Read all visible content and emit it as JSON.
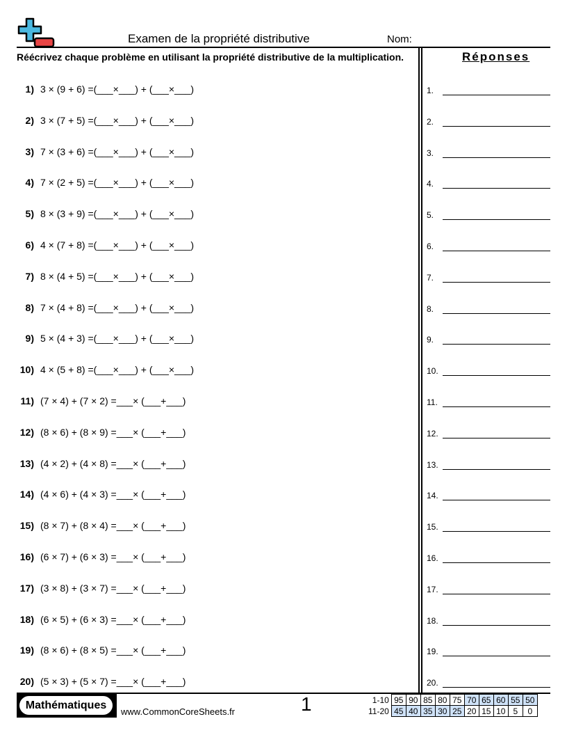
{
  "header": {
    "title": "Examen de la propriété distributive",
    "name_label": "Nom:"
  },
  "instructions": "Réécrivez chaque problème en utilisant la propriété distributive de la multiplication.",
  "answers_heading": "Réponses",
  "problems": [
    {
      "n": "1)",
      "text": "3 × (9 + 6) =(___×___) + (___×___)"
    },
    {
      "n": "2)",
      "text": "3 × (7 + 5) =(___×___) + (___×___)"
    },
    {
      "n": "3)",
      "text": "7 × (3 + 6) =(___×___) + (___×___)"
    },
    {
      "n": "4)",
      "text": "7 × (2 + 5) =(___×___) + (___×___)"
    },
    {
      "n": "5)",
      "text": "8 × (3 + 9) =(___×___) + (___×___)"
    },
    {
      "n": "6)",
      "text": "4 × (7 + 8) =(___×___) + (___×___)"
    },
    {
      "n": "7)",
      "text": "8 × (4 + 5) =(___×___) + (___×___)"
    },
    {
      "n": "8)",
      "text": "7 × (4 + 8) =(___×___) + (___×___)"
    },
    {
      "n": "9)",
      "text": "5 × (4 + 3) =(___×___) + (___×___)"
    },
    {
      "n": "10)",
      "text": "4 × (5 + 8) =(___×___) + (___×___)"
    },
    {
      "n": "11)",
      "text": "(7 × 4) + (7 × 2) =___× (___+___)"
    },
    {
      "n": "12)",
      "text": "(8 × 6) + (8 × 9) =___× (___+___)"
    },
    {
      "n": "13)",
      "text": "(4 × 2) + (4 × 8) =___× (___+___)"
    },
    {
      "n": "14)",
      "text": "(4 × 6) + (4 × 3) =___× (___+___)"
    },
    {
      "n": "15)",
      "text": "(8 × 7) + (8 × 4) =___× (___+___)"
    },
    {
      "n": "16)",
      "text": "(6 × 7) + (6 × 3) =___× (___+___)"
    },
    {
      "n": "17)",
      "text": "(3 × 8) + (3 × 7) =___× (___+___)"
    },
    {
      "n": "18)",
      "text": "(6 × 5) + (6 × 3) =___× (___+___)"
    },
    {
      "n": "19)",
      "text": "(8 × 6) + (8 × 5) =___× (___+___)"
    },
    {
      "n": "20)",
      "text": "(5 × 3) + (5 × 7) =___× (___+___)"
    }
  ],
  "answer_labels": [
    "1.",
    "2.",
    "3.",
    "4.",
    "5.",
    "6.",
    "7.",
    "8.",
    "9.",
    "10.",
    "11.",
    "12.",
    "13.",
    "14.",
    "15.",
    "16.",
    "17.",
    "18.",
    "19.",
    "20."
  ],
  "footer": {
    "badge": "Mathématiques",
    "site": "www.CommonCoreSheets.fr",
    "page": "1",
    "score_rows": [
      {
        "label": "1-10",
        "values": [
          "95",
          "90",
          "85",
          "80",
          "75",
          "70",
          "65",
          "60",
          "55",
          "50"
        ],
        "highlight": [
          5,
          6,
          7,
          8,
          9
        ]
      },
      {
        "label": "11-20",
        "values": [
          "45",
          "40",
          "35",
          "30",
          "25",
          "20",
          "15",
          "10",
          "5",
          "0"
        ],
        "highlight": [
          0,
          1,
          2,
          3,
          4
        ]
      }
    ],
    "highlight_color": "#cfe2f8"
  },
  "logo_colors": {
    "plus": "#4ab8e0",
    "minus": "#e84545"
  }
}
